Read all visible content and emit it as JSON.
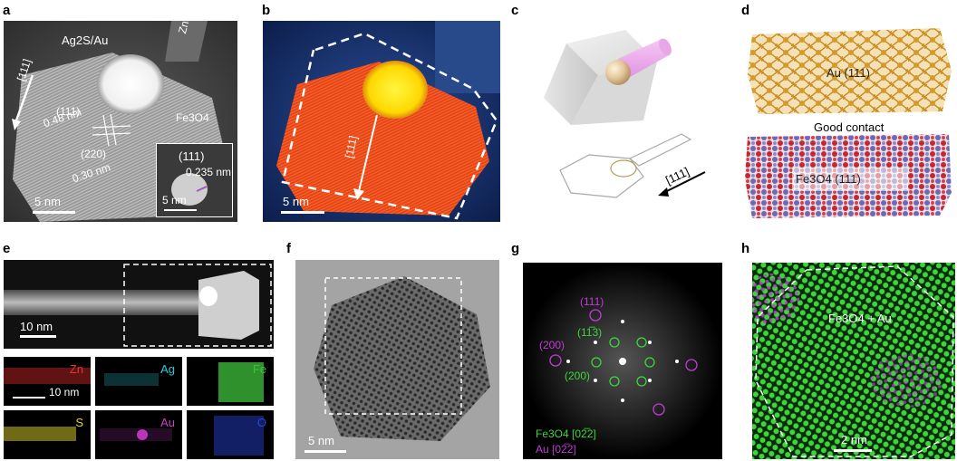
{
  "panel_labels": [
    "a",
    "b",
    "c",
    "d",
    "e",
    "f",
    "g",
    "h"
  ],
  "a": {
    "ag2s_au": "Ag2S/Au",
    "zns": "ZnS",
    "dir": "[111]",
    "plane_111": "(111)",
    "d_048": "0.48 nm",
    "plane_220": "(220)",
    "d_030": "0.30 nm",
    "fe3o4": "Fe3O4",
    "scale": "5 nm",
    "inset_plane": "(111)",
    "inset_d": "0.235 nm",
    "inset_scale": "5 nm"
  },
  "b": {
    "dir": "[111]",
    "scale": "5 nm"
  },
  "c": {
    "dir": "[111]"
  },
  "d": {
    "au": "Au (111)",
    "contact": "Good contact",
    "fe3o4": "Fe3O4 (111)"
  },
  "e": {
    "scale_top": "10 nm",
    "maps": [
      {
        "label": "Zn",
        "color": "#e8362b"
      },
      {
        "label": "Ag",
        "color": "#2ec9d8"
      },
      {
        "label": "Fe",
        "color": "#3fc23a"
      },
      {
        "label": "S",
        "color": "#e0d42c"
      },
      {
        "label": "Au",
        "color": "#d03fd0"
      },
      {
        "label": "O",
        "color": "#2a45e0"
      }
    ],
    "scale_map": "10 nm"
  },
  "f": {
    "scale": "5 nm"
  },
  "g": {
    "l111": "(111)",
    "l113": "(11̅3)",
    "l200": "(200)",
    "l200b": "(200)",
    "legend_fe": "Fe3O4 [02̅2]",
    "legend_au": "Au [02̅2]",
    "green": "#3cd63c",
    "purple": "#c23cd6"
  },
  "h": {
    "label": "Fe3O4 + Au",
    "scale": "2 nm"
  }
}
